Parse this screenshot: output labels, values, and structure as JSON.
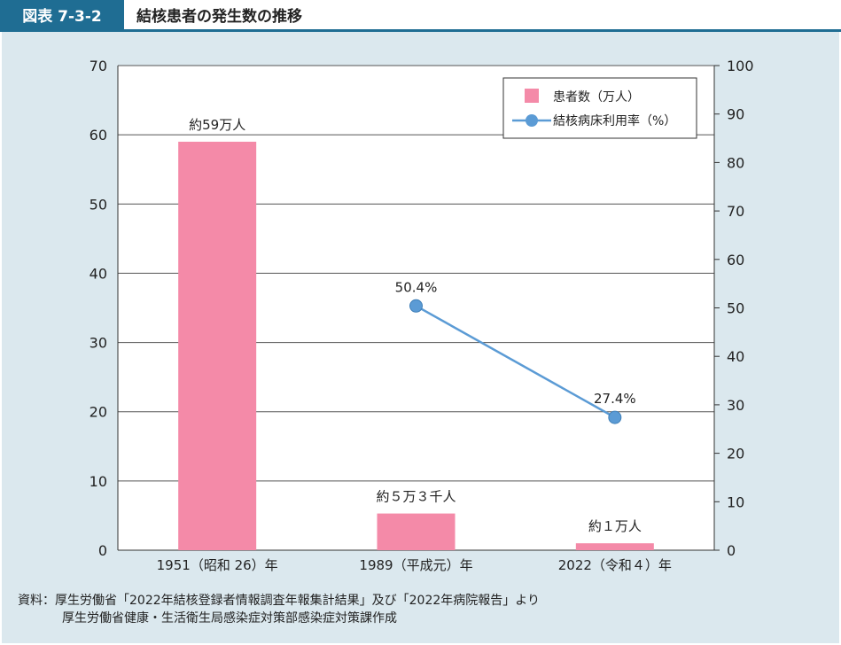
{
  "header": {
    "badge": "図表 7-3-2",
    "title": "結核患者の発生数の推移"
  },
  "chart_data": {
    "type": "bar",
    "categories": [
      "1951（昭和 26）年",
      "1989（平成元）年",
      "2022（令和４）年"
    ],
    "left_axis": {
      "ylim": [
        0,
        70
      ],
      "ticks": [
        "0",
        "10",
        "20",
        "30",
        "40",
        "50",
        "60",
        "70"
      ]
    },
    "right_axis": {
      "ylim": [
        0,
        100
      ],
      "ticks": [
        "0",
        "10",
        "20",
        "30",
        "40",
        "50",
        "60",
        "70",
        "80",
        "90",
        "100"
      ]
    },
    "grid": true,
    "legend_position": "top-right",
    "series": [
      {
        "name": "患者数（万人）",
        "type": "bar",
        "axis": "left",
        "color": "#f48aa8",
        "values": [
          59,
          5.3,
          1.0
        ],
        "labels": [
          "約59万人",
          "約５万３千人",
          "約１万人"
        ]
      },
      {
        "name": "結核病床利用率（%）",
        "type": "line",
        "axis": "right",
        "color": "#5b9bd5",
        "values": [
          null,
          50.4,
          27.4
        ],
        "labels": [
          "",
          "50.4%",
          "27.4%"
        ]
      }
    ]
  },
  "source": {
    "line1": "資料：厚生労働省「2022年結核登録者情報調査年報集計結果」及び「2022年病院報告」より",
    "line2": "厚生労働省健康・生活衛生局感染症対策部感染症対策課作成"
  }
}
